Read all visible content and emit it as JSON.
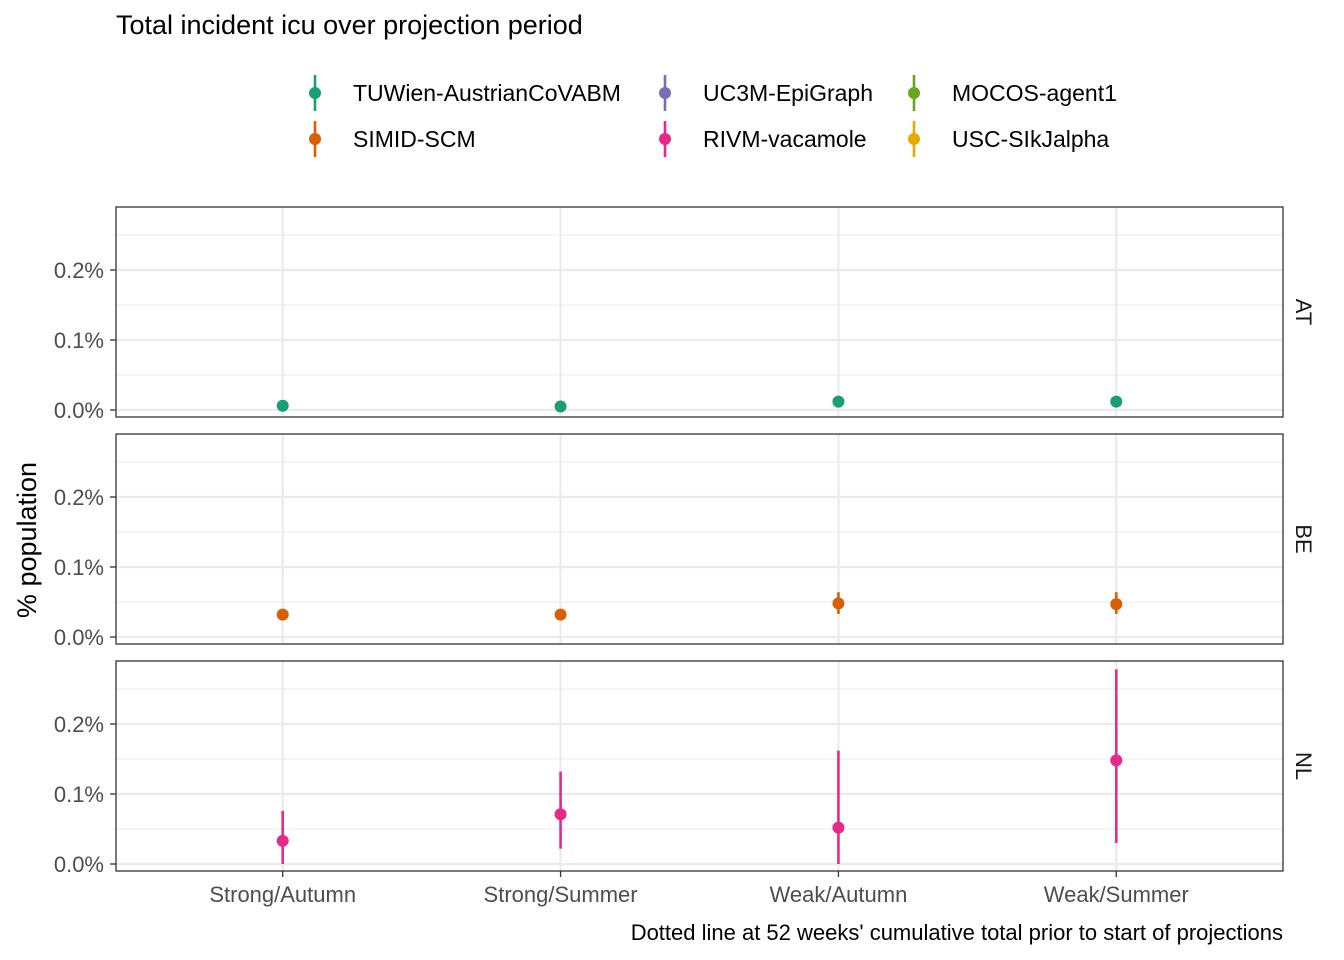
{
  "chart_data": {
    "type": "scatter",
    "title": "Total incident icu over projection period",
    "ylabel": "% population",
    "xlabel": "",
    "caption": "Dotted line at 52 weeks' cumulative total prior to start of projections",
    "categories": [
      "Strong/Autumn",
      "Strong/Summer",
      "Weak/Autumn",
      "Weak/Summer"
    ],
    "ylim": [
      -0.0001,
      0.0029
    ],
    "yticks": [
      0.0,
      0.001,
      0.002
    ],
    "ytick_labels": [
      "0.0%",
      "0.1%",
      "0.2%"
    ],
    "grid": true,
    "legend_position": "top",
    "legend": [
      {
        "name": "TUWien-AustrianCoVABM",
        "color": "#1B9E77"
      },
      {
        "name": "UC3M-EpiGraph",
        "color": "#7570B3"
      },
      {
        "name": "MOCOS-agent1",
        "color": "#66A61E"
      },
      {
        "name": "SIMID-SCM",
        "color": "#D95F02"
      },
      {
        "name": "RIVM-vacamole",
        "color": "#E7298A"
      },
      {
        "name": "USC-SIkJalpha",
        "color": "#E6AB02"
      }
    ],
    "panels": [
      {
        "label": "AT",
        "series": [
          {
            "name": "TUWien-AustrianCoVABM",
            "color": "#1B9E77",
            "values": [
              6e-05,
              5e-05,
              0.00012,
              0.00012
            ],
            "lower": [
              6e-05,
              5e-05,
              0.00012,
              0.00012
            ],
            "upper": [
              6e-05,
              5e-05,
              0.00012,
              0.00012
            ]
          }
        ]
      },
      {
        "label": "BE",
        "series": [
          {
            "name": "SIMID-SCM",
            "color": "#D95F02",
            "values": [
              0.00032,
              0.00032,
              0.00048,
              0.00047
            ],
            "lower": [
              0.00032,
              0.00032,
              0.00033,
              0.00033
            ],
            "upper": [
              0.00032,
              0.00032,
              0.00064,
              0.00064
            ]
          }
        ]
      },
      {
        "label": "NL",
        "series": [
          {
            "name": "RIVM-vacamole",
            "color": "#E7298A",
            "values": [
              0.00033,
              0.00071,
              0.00052,
              0.00148
            ],
            "lower": [
              0.0,
              0.00022,
              0.0,
              0.0003
            ],
            "upper": [
              0.00076,
              0.00132,
              0.00162,
              0.00278
            ]
          }
        ]
      }
    ]
  }
}
